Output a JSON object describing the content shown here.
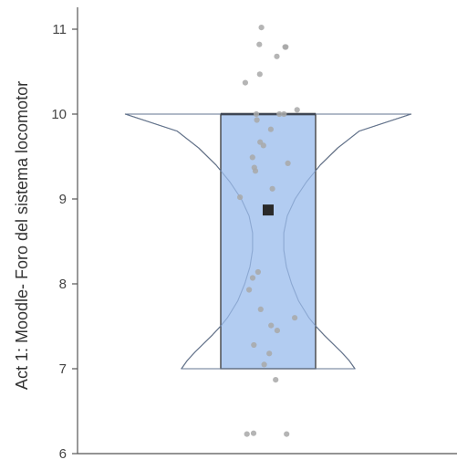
{
  "chart_data": {
    "type": "violin-box",
    "ylabel": "Act 1: Moodle-  Foro del sistema locomotor",
    "xlabel": "",
    "ylim": [
      6,
      11.2
    ],
    "yticks": [
      6,
      7,
      8,
      9,
      10,
      11
    ],
    "grid": false,
    "box": {
      "q1": 7,
      "median": 10,
      "q3": 10,
      "mean": 8.87,
      "fill": "#aac6ef",
      "stroke": "#444444"
    },
    "violin_density": [
      [
        7.0,
        1.0
      ],
      [
        7.1,
        0.93
      ],
      [
        7.2,
        0.84
      ],
      [
        7.3,
        0.74
      ],
      [
        7.4,
        0.64
      ],
      [
        7.5,
        0.55
      ],
      [
        7.6,
        0.47
      ],
      [
        7.8,
        0.35
      ],
      [
        8.0,
        0.27
      ],
      [
        8.2,
        0.21
      ],
      [
        8.4,
        0.18
      ],
      [
        8.6,
        0.18
      ],
      [
        8.8,
        0.22
      ],
      [
        9.0,
        0.31
      ],
      [
        9.2,
        0.44
      ],
      [
        9.4,
        0.6
      ],
      [
        9.6,
        0.8
      ],
      [
        9.8,
        1.05
      ],
      [
        10.0,
        1.35
      ]
    ],
    "points": [
      11.02,
      10.82,
      10.79,
      10.79,
      10.68,
      10.47,
      10.37,
      10.05,
      10.0,
      10.0,
      10.0,
      9.93,
      9.82,
      9.67,
      9.63,
      9.49,
      9.42,
      9.37,
      9.33,
      9.12,
      9.02,
      8.14,
      8.07,
      7.93,
      7.7,
      7.6,
      7.51,
      7.45,
      7.28,
      7.18,
      7.05,
      6.87,
      6.24,
      6.23,
      6.23
    ],
    "point_color": "#a8a8a8",
    "mean_marker_color": "#2a2a2a"
  }
}
